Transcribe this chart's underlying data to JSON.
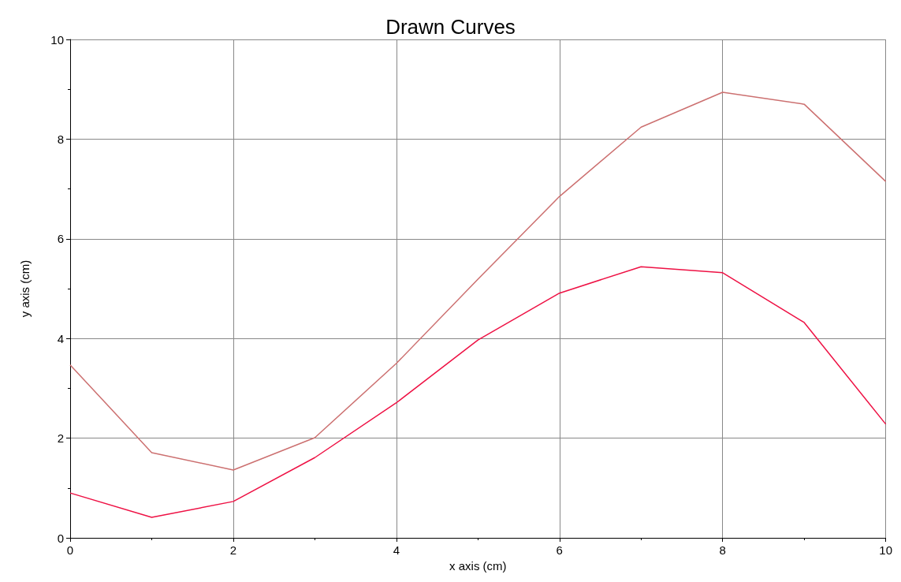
{
  "chart_data": {
    "type": "line",
    "title": "Drawn Curves",
    "xlabel": "x axis (cm)",
    "ylabel": "y axis (cm)",
    "x": [
      0,
      1,
      2,
      3,
      4,
      5,
      6,
      7,
      8,
      9,
      10
    ],
    "series": [
      {
        "color": "#cc7070",
        "values": [
          3.47,
          1.71,
          1.36,
          2.01,
          3.5,
          5.19,
          6.85,
          8.24,
          8.94,
          8.7,
          7.15
        ]
      },
      {
        "color": "#ee1144",
        "values": [
          0.9,
          0.41,
          0.73,
          1.61,
          2.71,
          3.97,
          4.91,
          5.44,
          5.32,
          4.32,
          2.28
        ]
      }
    ],
    "xlim": [
      0,
      10
    ],
    "xticks": [
      0,
      2,
      4,
      6,
      8,
      10
    ],
    "ylim": [
      0,
      10
    ],
    "yticks": [
      0,
      2,
      4,
      6,
      8,
      10
    ],
    "grid": true,
    "marker": "none",
    "line_style": "solid"
  }
}
